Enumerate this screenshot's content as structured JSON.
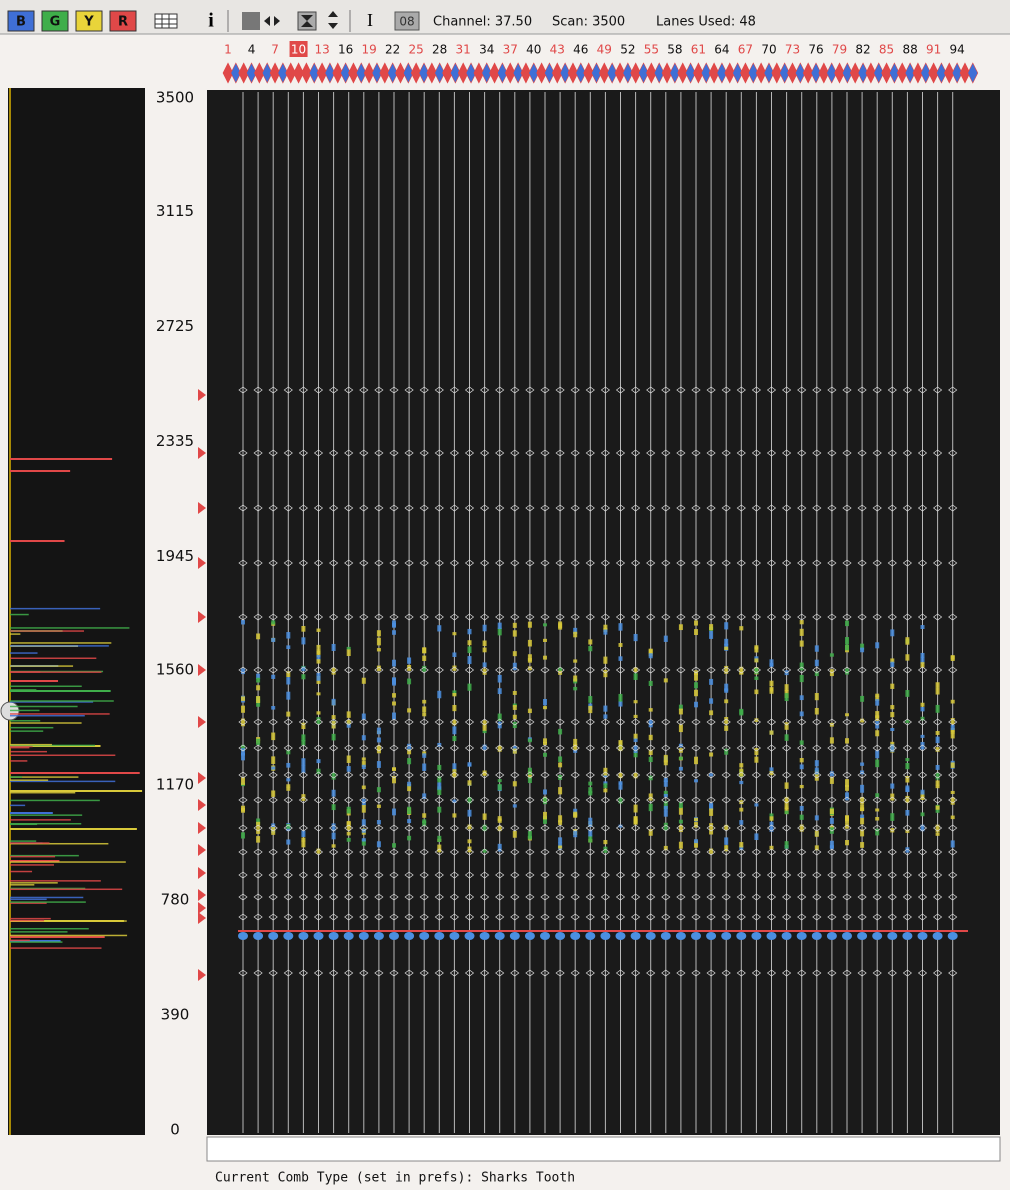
{
  "toolbar": {
    "color_buttons": [
      {
        "label": "B",
        "color": "#3f6fd6"
      },
      {
        "label": "G",
        "color": "#3fae4a"
      },
      {
        "label": "Y",
        "color": "#e9d43a"
      },
      {
        "label": "R",
        "color": "#e04848"
      }
    ],
    "info_button": "i",
    "cursor_button": "I",
    "zoom_box": "08",
    "channel": "Channel: 37.50",
    "scan": "Scan: 3500",
    "lanes_used": "Lanes Used: 48"
  },
  "lanes": [
    1,
    4,
    7,
    10,
    13,
    16,
    19,
    22,
    25,
    28,
    31,
    34,
    37,
    40,
    43,
    46,
    49,
    52,
    55,
    58,
    61,
    64,
    67,
    70,
    73,
    76,
    79,
    82,
    85,
    88,
    91,
    94
  ],
  "selected_lane": 10,
  "scan_axis": {
    "range": [
      0,
      3500
    ],
    "ticks": [
      3500,
      3115,
      2725,
      2335,
      1945,
      1560,
      1170,
      780,
      390,
      0
    ]
  },
  "status": "Current Comb Type (set in prefs): Sharks Tooth"
}
